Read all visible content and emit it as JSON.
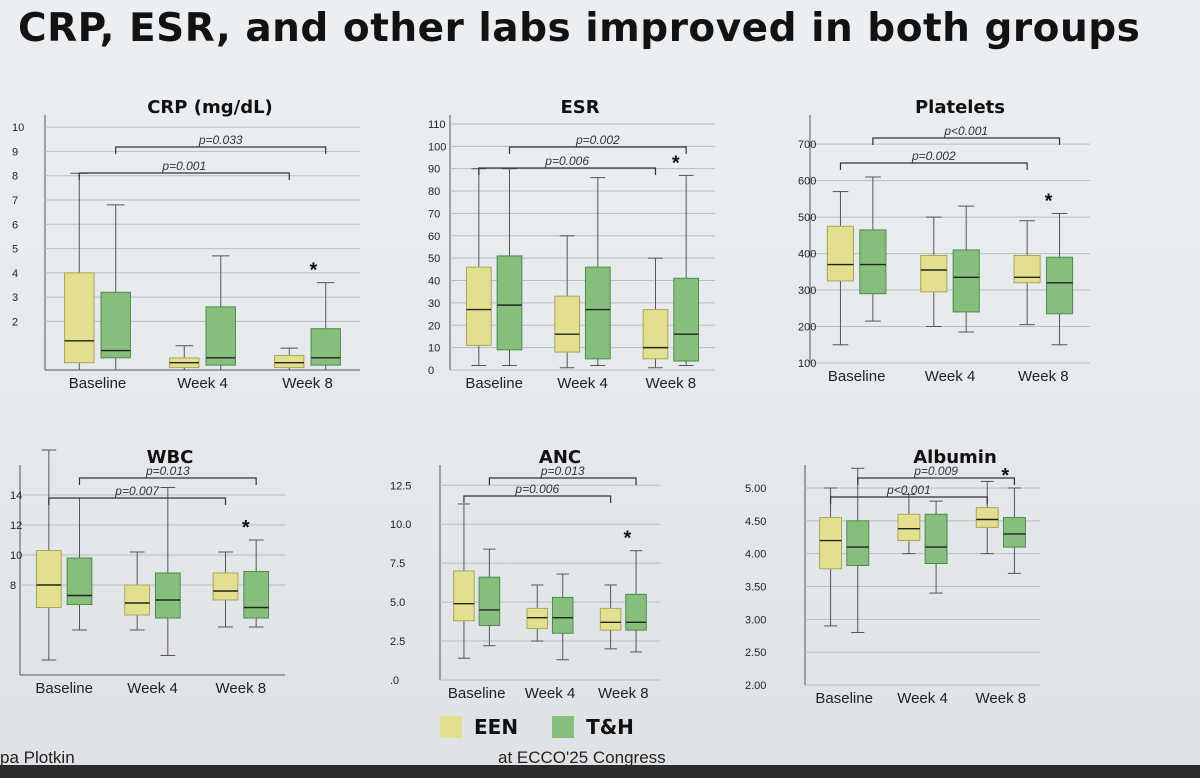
{
  "slide": {
    "title": "CRP, ESR, and other labs improved in both groups",
    "footer_left": "pa Plotkin",
    "footer_center": "at ECCO'25 Congress"
  },
  "legend": [
    {
      "name": "EEN",
      "color": "#e2df8e"
    },
    {
      "name": "T&H",
      "color": "#86bf7c"
    }
  ],
  "colors": {
    "een_fill": "#e2df8e",
    "een_stroke": "#a9a55a",
    "th_fill": "#86bf7c",
    "th_stroke": "#4f8a4f",
    "outlier": "#3e8d77"
  },
  "chart_data": [
    {
      "type": "boxplot",
      "title": "CRP (mg/dL)",
      "categories": [
        "Baseline",
        "Week 4",
        "Week 8"
      ],
      "yticks": [
        "10",
        "9",
        "8",
        "7",
        "6",
        "5",
        "4",
        "3",
        "2"
      ],
      "ylim": [
        0,
        10.5
      ],
      "series": [
        {
          "name": "EEN",
          "boxes": [
            [
              0,
              0.3,
              1.2,
              4.0,
              8.1
            ],
            [
              0,
              0.1,
              0.3,
              0.5,
              1.0
            ],
            [
              0,
              0.1,
              0.3,
              0.6,
              0.9
            ]
          ]
        },
        {
          "name": "T&H",
          "boxes": [
            [
              0,
              0.5,
              0.8,
              3.2,
              6.8
            ],
            [
              0,
              0.2,
              0.5,
              2.6,
              4.7
            ],
            [
              0,
              0.2,
              0.5,
              1.7,
              3.6
            ]
          ]
        }
      ],
      "comparisons": [
        {
          "label": "p=0.033"
        },
        {
          "label": "p=0.001"
        }
      ],
      "significance": "*"
    },
    {
      "type": "boxplot",
      "title": "ESR",
      "categories": [
        "Baseline",
        "Week 4",
        "Week 8"
      ],
      "yticks": [
        "110",
        "100",
        "90",
        "80",
        "70",
        "60",
        "50",
        "40",
        "30",
        "20",
        "10",
        "0"
      ],
      "ylim": [
        0,
        114
      ],
      "series": [
        {
          "name": "EEN",
          "boxes": [
            [
              2,
              11,
              27,
              46,
              90
            ],
            [
              1,
              8,
              16,
              33,
              60
            ],
            [
              1,
              5,
              10,
              27,
              50
            ]
          ]
        },
        {
          "name": "T&H",
          "boxes": [
            [
              2,
              9,
              29,
              51,
              90
            ],
            [
              2,
              5,
              27,
              46,
              86
            ],
            [
              2,
              4,
              16,
              41,
              87
            ]
          ]
        }
      ],
      "comparisons": [
        {
          "label": "p=0.002"
        },
        {
          "label": "p=0.006"
        }
      ],
      "significance": "*"
    },
    {
      "type": "boxplot",
      "title": "Platelets",
      "categories": [
        "Baseline",
        "Week 4",
        "Week 8"
      ],
      "yticks": [
        "700",
        "600",
        "500",
        "400",
        "300",
        "200",
        "100"
      ],
      "ylim": [
        100,
        780
      ],
      "series": [
        {
          "name": "EEN",
          "boxes": [
            [
              150,
              325,
              370,
              475,
              570
            ],
            [
              200,
              295,
              355,
              395,
              500
            ],
            [
              205,
              320,
              335,
              395,
              490
            ]
          ]
        },
        {
          "name": "T&H",
          "boxes": [
            [
              215,
              290,
              370,
              465,
              610
            ],
            [
              185,
              240,
              335,
              410,
              530
            ],
            [
              150,
              235,
              320,
              390,
              510
            ]
          ]
        }
      ],
      "comparisons": [
        {
          "label": "p<0.001"
        },
        {
          "label": "p=0.002"
        }
      ],
      "significance": "*"
    },
    {
      "type": "boxplot",
      "title": "WBC",
      "categories": [
        "Baseline",
        "Week 4",
        "Week 8"
      ],
      "yticks": [
        "14",
        "12",
        "10",
        "8"
      ],
      "ylim": [
        2,
        16
      ],
      "series": [
        {
          "name": "EEN",
          "boxes": [
            [
              3,
              6.5,
              8.0,
              10.3,
              17
            ],
            [
              5,
              6.0,
              6.8,
              8.0,
              10.2
            ],
            [
              5.2,
              7.0,
              7.6,
              8.8,
              10.2
            ]
          ]
        },
        {
          "name": "T&H",
          "boxes": [
            [
              5,
              6.7,
              7.3,
              9.8,
              13.8
            ],
            [
              3.3,
              5.8,
              7.0,
              8.8,
              14.5
            ],
            [
              5.2,
              5.8,
              6.5,
              8.9,
              11.0
            ]
          ]
        }
      ],
      "comparisons": [
        {
          "label": "p=0.013"
        },
        {
          "label": "p=0.007"
        }
      ],
      "significance": "*"
    },
    {
      "type": "boxplot",
      "title": "ANC",
      "categories": [
        "Baseline",
        "Week 4",
        "Week 8"
      ],
      "yticks": [
        "12.5",
        "10.0",
        "7.5",
        "5.0",
        "2.5",
        ".0"
      ],
      "ylim": [
        0,
        13.8
      ],
      "series": [
        {
          "name": "EEN",
          "boxes": [
            [
              1.4,
              3.8,
              4.9,
              7.0,
              11.3
            ],
            [
              2.5,
              3.3,
              4.0,
              4.6,
              6.1
            ],
            [
              2.0,
              3.2,
              3.7,
              4.6,
              6.1
            ]
          ]
        },
        {
          "name": "T&H",
          "boxes": [
            [
              2.2,
              3.5,
              4.5,
              6.6,
              8.4
            ],
            [
              1.3,
              3.0,
              4.0,
              5.3,
              6.8
            ],
            [
              1.8,
              3.2,
              3.7,
              5.5,
              8.3
            ]
          ]
        }
      ],
      "comparisons": [
        {
          "label": "p=0.013"
        },
        {
          "label": "p=0.006"
        }
      ],
      "significance": "*"
    },
    {
      "type": "boxplot",
      "title": "Albumin",
      "categories": [
        "Baseline",
        "Week 4",
        "Week 8"
      ],
      "yticks": [
        "5.00",
        "4.50",
        "4.00",
        "3.50",
        "3.00",
        "2.50",
        "2.00"
      ],
      "ylim": [
        2,
        5.35
      ],
      "series": [
        {
          "name": "EEN",
          "boxes": [
            [
              2.9,
              3.77,
              4.2,
              4.55,
              5.0
            ],
            [
              4.0,
              4.2,
              4.38,
              4.6,
              4.9
            ],
            [
              4.0,
              4.4,
              4.52,
              4.7,
              5.1
            ]
          ]
        },
        {
          "name": "T&H",
          "boxes": [
            [
              2.8,
              3.82,
              4.1,
              4.5,
              5.3
            ],
            [
              3.4,
              3.85,
              4.1,
              4.6,
              4.8
            ],
            [
              3.7,
              4.1,
              4.3,
              4.55,
              5.0
            ]
          ]
        }
      ],
      "comparisons": [
        {
          "label": "p=0.009"
        },
        {
          "label": "p<0.001"
        }
      ],
      "significance": "*"
    }
  ]
}
